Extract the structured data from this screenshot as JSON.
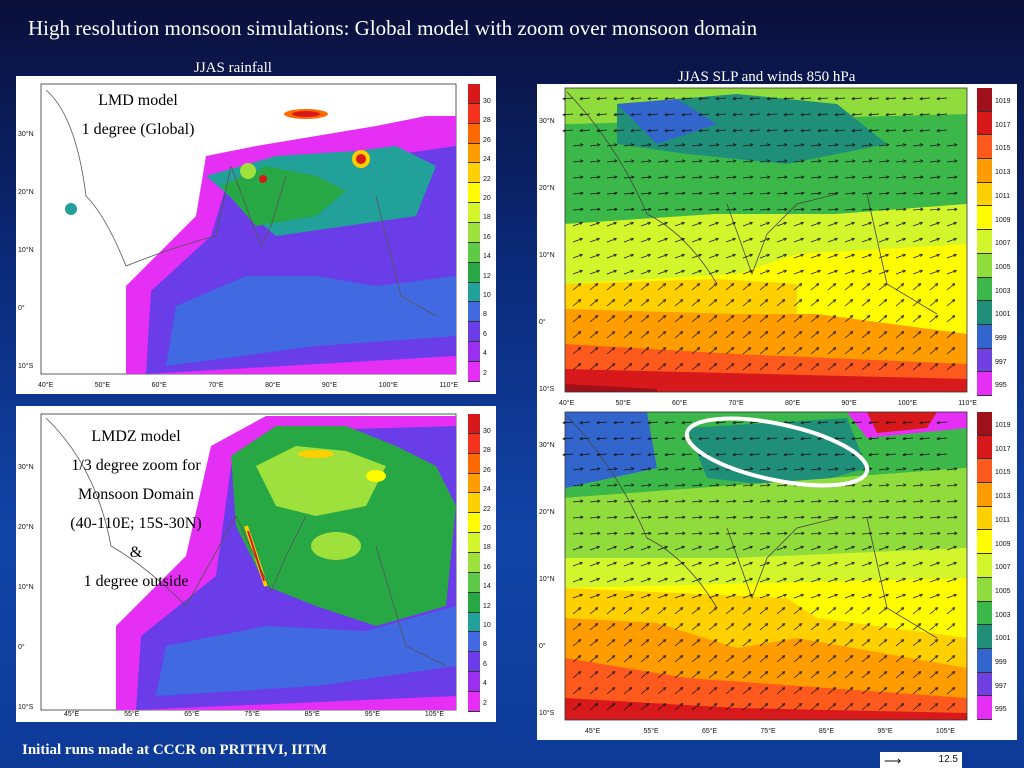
{
  "title": "High resolution monsoon simulations: Global model with zoom over monsoon domain",
  "captions": {
    "rainfall": "JJAS rainfall",
    "slp": "JJAS SLP  and winds 850 hPa"
  },
  "footer": "Initial runs made at CCCR on PRITHVI, IITM",
  "panel_lmd": {
    "lines": [
      "LMD model",
      "1 degree  (Global)"
    ],
    "lat_labels": [
      "30°N",
      "20°N",
      "10°N",
      "0°",
      "10°S"
    ],
    "lon_labels": [
      "40°E",
      "50°E",
      "60°E",
      "70°E",
      "80°E",
      "90°E",
      "100°E",
      "110°E"
    ]
  },
  "panel_lmdz": {
    "lines": [
      "LMDZ model",
      "1/3 degree zoom for",
      "Monsoon Domain",
      "(40-110E; 15S-30N)",
      "&",
      "1 degree outside"
    ],
    "lat_labels": [
      "30°N",
      "20°N",
      "10°N",
      "0°",
      "10°S"
    ],
    "lon_labels": [
      "45°E",
      "55°E",
      "65°E",
      "75°E",
      "85°E",
      "95°E",
      "105°E"
    ]
  },
  "panel_slp_top": {
    "lat_labels": [
      "30°N",
      "20°N",
      "10°N",
      "0°",
      "10°S"
    ],
    "lon_labels": [
      "40°E",
      "50°E",
      "60°E",
      "70°E",
      "80°E",
      "90°E",
      "100°E",
      "110°E"
    ]
  },
  "panel_slp_bottom": {
    "lat_labels": [
      "30°N",
      "20°N",
      "10°N",
      "0°",
      "10°S"
    ],
    "lon_labels": [
      "45°E",
      "55°E",
      "65°E",
      "75°E",
      "85°E",
      "95°E",
      "105°E"
    ]
  },
  "rain_legend": {
    "ticks": [
      "30",
      "28",
      "26",
      "24",
      "22",
      "20",
      "18",
      "16",
      "14",
      "12",
      "10",
      "8",
      "6",
      "4",
      "2"
    ],
    "colors": [
      "#d7191c",
      "#f4321e",
      "#ff6a00",
      "#ff9d00",
      "#ffd000",
      "#fffb00",
      "#d3f52b",
      "#9ee03c",
      "#5fc94a",
      "#28a845",
      "#22a09a",
      "#4169e1",
      "#6a3de8",
      "#9b2ff0",
      "#e52ff5"
    ]
  },
  "slp_legend": {
    "ticks": [
      "1019",
      "1017",
      "1015",
      "1013",
      "1011",
      "1009",
      "1007",
      "1005",
      "1003",
      "1001",
      "999",
      "997",
      "995"
    ],
    "colors": [
      "#a0101a",
      "#d7191c",
      "#ff5a1e",
      "#ff9d00",
      "#ffd000",
      "#fffb00",
      "#d3f52b",
      "#8fdc3c",
      "#3cb84a",
      "#1f8f7a",
      "#3366cc",
      "#7040e0",
      "#e52ff5"
    ]
  },
  "wind_scale": {
    "value": "12.5"
  }
}
